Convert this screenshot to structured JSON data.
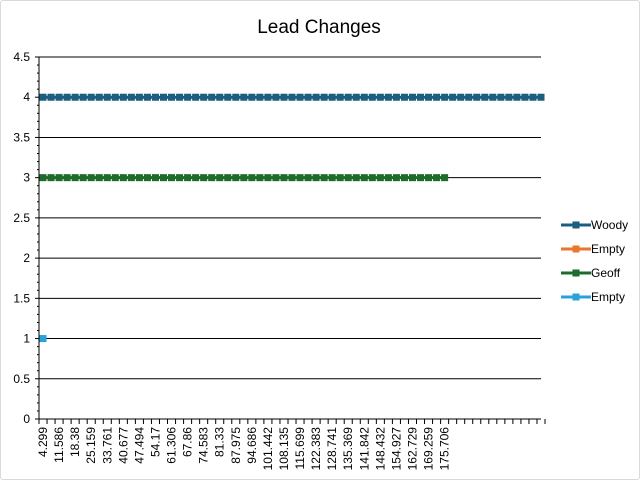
{
  "chart_data": {
    "type": "line",
    "title": "Lead Changes",
    "xlabel": "",
    "ylabel": "",
    "ylim": [
      0,
      4.5
    ],
    "y_ticks": [
      "0",
      "0.5",
      "1",
      "1.5",
      "2",
      "2.5",
      "3",
      "3.5",
      "4",
      "4.5"
    ],
    "x_tick_labels": [
      "4.299",
      "11.586",
      "18.38",
      "25.159",
      "33.761",
      "40.677",
      "47.494",
      "54.17",
      "61.306",
      "67.86",
      "74.583",
      "81.33",
      "87.975",
      "94.686",
      "101.442",
      "108.135",
      "115.699",
      "122.383",
      "128.741",
      "135.369",
      "141.842",
      "148.432",
      "154.927",
      "162.729",
      "169.259",
      "175.706"
    ],
    "category_count": 63,
    "grid": "horizontal",
    "legend_position": "right",
    "series": [
      {
        "name": "Woody",
        "color": "#1b5e7f",
        "marker": "square",
        "y": 4,
        "first_index": 0,
        "last_index": 62
      },
      {
        "name": "Empty",
        "color": "#e8762d",
        "marker": "square",
        "y": null,
        "first_index": null,
        "last_index": null
      },
      {
        "name": "Geoff",
        "color": "#1e6b2b",
        "marker": "square",
        "y": 3,
        "first_index": 0,
        "last_index": 50
      },
      {
        "name": "Empty",
        "color": "#2aa1d8",
        "marker": "square",
        "y": 1,
        "first_index": 0,
        "last_index": 0
      }
    ]
  }
}
